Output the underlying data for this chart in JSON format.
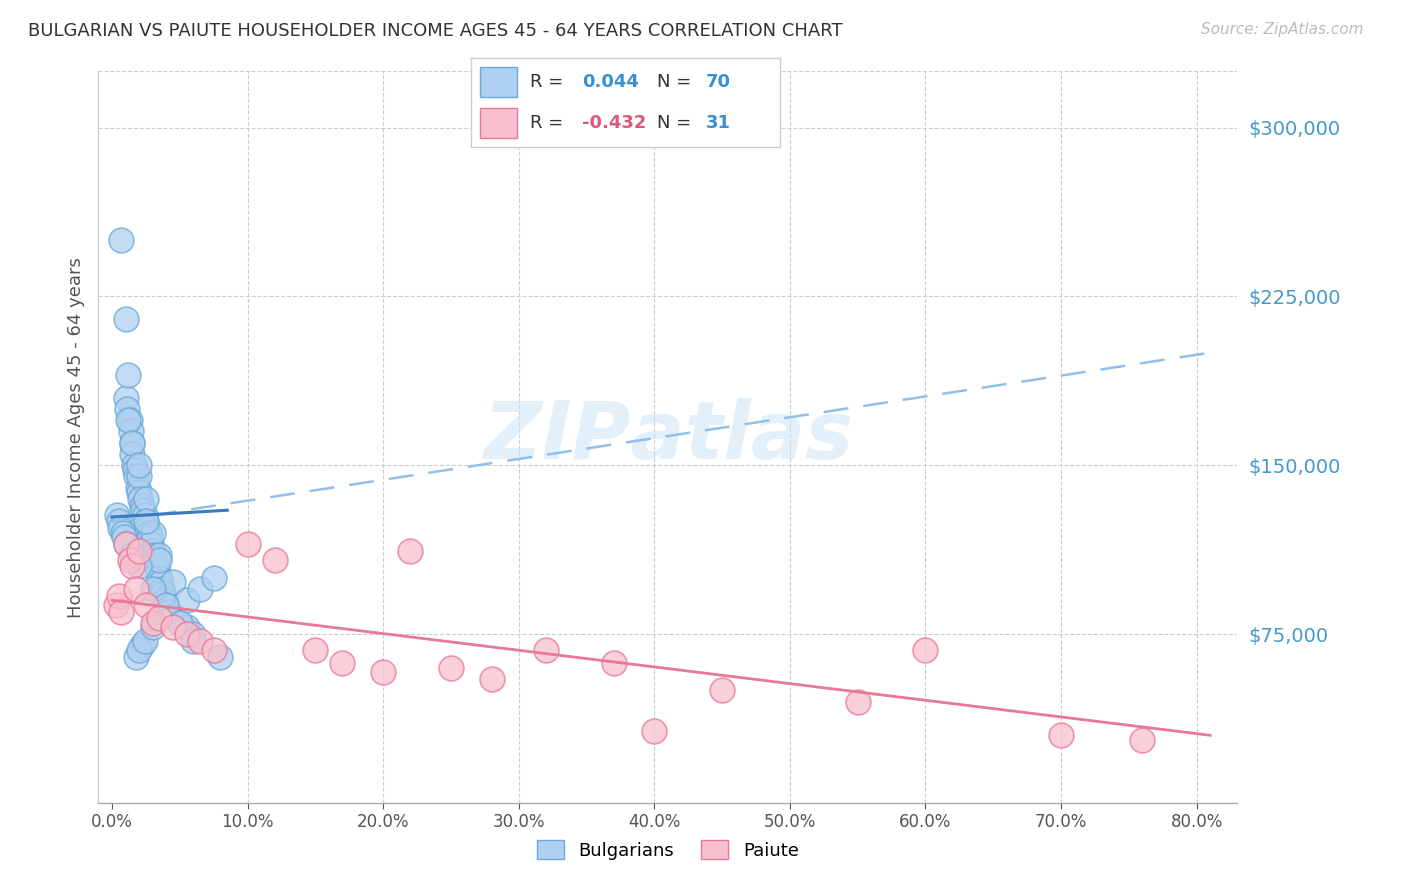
{
  "title": "BULGARIAN VS PAIUTE HOUSEHOLDER INCOME AGES 45 - 64 YEARS CORRELATION CHART",
  "source": "Source: ZipAtlas.com",
  "ylabel": "Householder Income Ages 45 - 64 years",
  "xlabel_ticks": [
    "0.0%",
    "10.0%",
    "20.0%",
    "30.0%",
    "40.0%",
    "50.0%",
    "60.0%",
    "70.0%",
    "80.0%"
  ],
  "xlabel_vals": [
    0.0,
    10.0,
    20.0,
    30.0,
    40.0,
    50.0,
    60.0,
    70.0,
    80.0
  ],
  "ytick_labels": [
    "$75,000",
    "$150,000",
    "$225,000",
    "$300,000"
  ],
  "ytick_vals": [
    75000,
    150000,
    225000,
    300000
  ],
  "ylim": [
    0,
    325000
  ],
  "xlim": [
    -1,
    83
  ],
  "bulgarian_color": "#afd0f0",
  "bulgarian_edge_color": "#6aaad8",
  "paiute_color": "#f8c0cc",
  "paiute_edge_color": "#e87898",
  "bulgarian_R": 0.044,
  "bulgarian_N": 70,
  "paiute_R": -0.432,
  "paiute_N": 31,
  "title_color": "#333333",
  "axis_label_color": "#555555",
  "ytick_color": "#4499cc",
  "xtick_color": "#555555",
  "grid_color": "#cccccc",
  "bulgarians_x": [
    0.4,
    0.5,
    0.6,
    0.7,
    0.8,
    0.9,
    1.0,
    1.0,
    1.1,
    1.2,
    1.3,
    1.4,
    1.5,
    1.5,
    1.6,
    1.7,
    1.8,
    1.9,
    2.0,
    2.0,
    2.1,
    2.2,
    2.3,
    2.4,
    2.5,
    2.5,
    2.6,
    2.7,
    2.8,
    2.9,
    3.0,
    3.0,
    3.1,
    3.2,
    3.3,
    3.4,
    3.5,
    3.5,
    3.6,
    3.7,
    3.8,
    3.9,
    4.0,
    4.2,
    4.5,
    5.0,
    5.5,
    6.0,
    2.2,
    1.8,
    2.0,
    2.4,
    3.0,
    1.2,
    1.5,
    2.0,
    2.5,
    3.5,
    4.5,
    5.5,
    6.5,
    7.5,
    8.0,
    1.0,
    1.5,
    2.0,
    3.0,
    4.0,
    5.0,
    6.0
  ],
  "bulgarians_y": [
    128000,
    125000,
    122000,
    250000,
    120000,
    118000,
    215000,
    180000,
    175000,
    190000,
    170000,
    165000,
    160000,
    155000,
    150000,
    148000,
    145000,
    140000,
    138000,
    145000,
    135000,
    132000,
    130000,
    128000,
    125000,
    135000,
    122000,
    120000,
    118000,
    115000,
    112000,
    120000,
    110000,
    108000,
    105000,
    103000,
    100000,
    110000,
    98000,
    95000,
    93000,
    90000,
    88000,
    85000,
    83000,
    80000,
    78000,
    75000,
    70000,
    65000,
    68000,
    72000,
    78000,
    170000,
    160000,
    150000,
    125000,
    108000,
    98000,
    90000,
    95000,
    100000,
    65000,
    115000,
    110000,
    105000,
    95000,
    88000,
    80000,
    72000
  ],
  "paiute_x": [
    0.3,
    0.5,
    0.7,
    1.0,
    1.3,
    1.5,
    1.8,
    2.0,
    2.5,
    3.0,
    3.5,
    4.5,
    5.5,
    6.5,
    7.5,
    10.0,
    12.0,
    15.0,
    17.0,
    20.0,
    22.0,
    25.0,
    28.0,
    32.0,
    37.0,
    40.0,
    45.0,
    55.0,
    60.0,
    70.0,
    76.0
  ],
  "paiute_y": [
    88000,
    92000,
    85000,
    115000,
    108000,
    105000,
    95000,
    112000,
    88000,
    80000,
    82000,
    78000,
    75000,
    72000,
    68000,
    115000,
    108000,
    68000,
    62000,
    58000,
    112000,
    60000,
    55000,
    68000,
    62000,
    32000,
    50000,
    45000,
    68000,
    30000,
    28000
  ],
  "blue_solid_x0": 0.0,
  "blue_solid_y0": 127000,
  "blue_solid_x1": 8.5,
  "blue_solid_y1": 130000,
  "blue_dash_x0": 0.0,
  "blue_dash_y0": 125000,
  "blue_dash_x1": 81.0,
  "blue_dash_y1": 200000,
  "pink_x0": 0.0,
  "pink_y0": 90000,
  "pink_x1": 81.0,
  "pink_y1": 30000
}
